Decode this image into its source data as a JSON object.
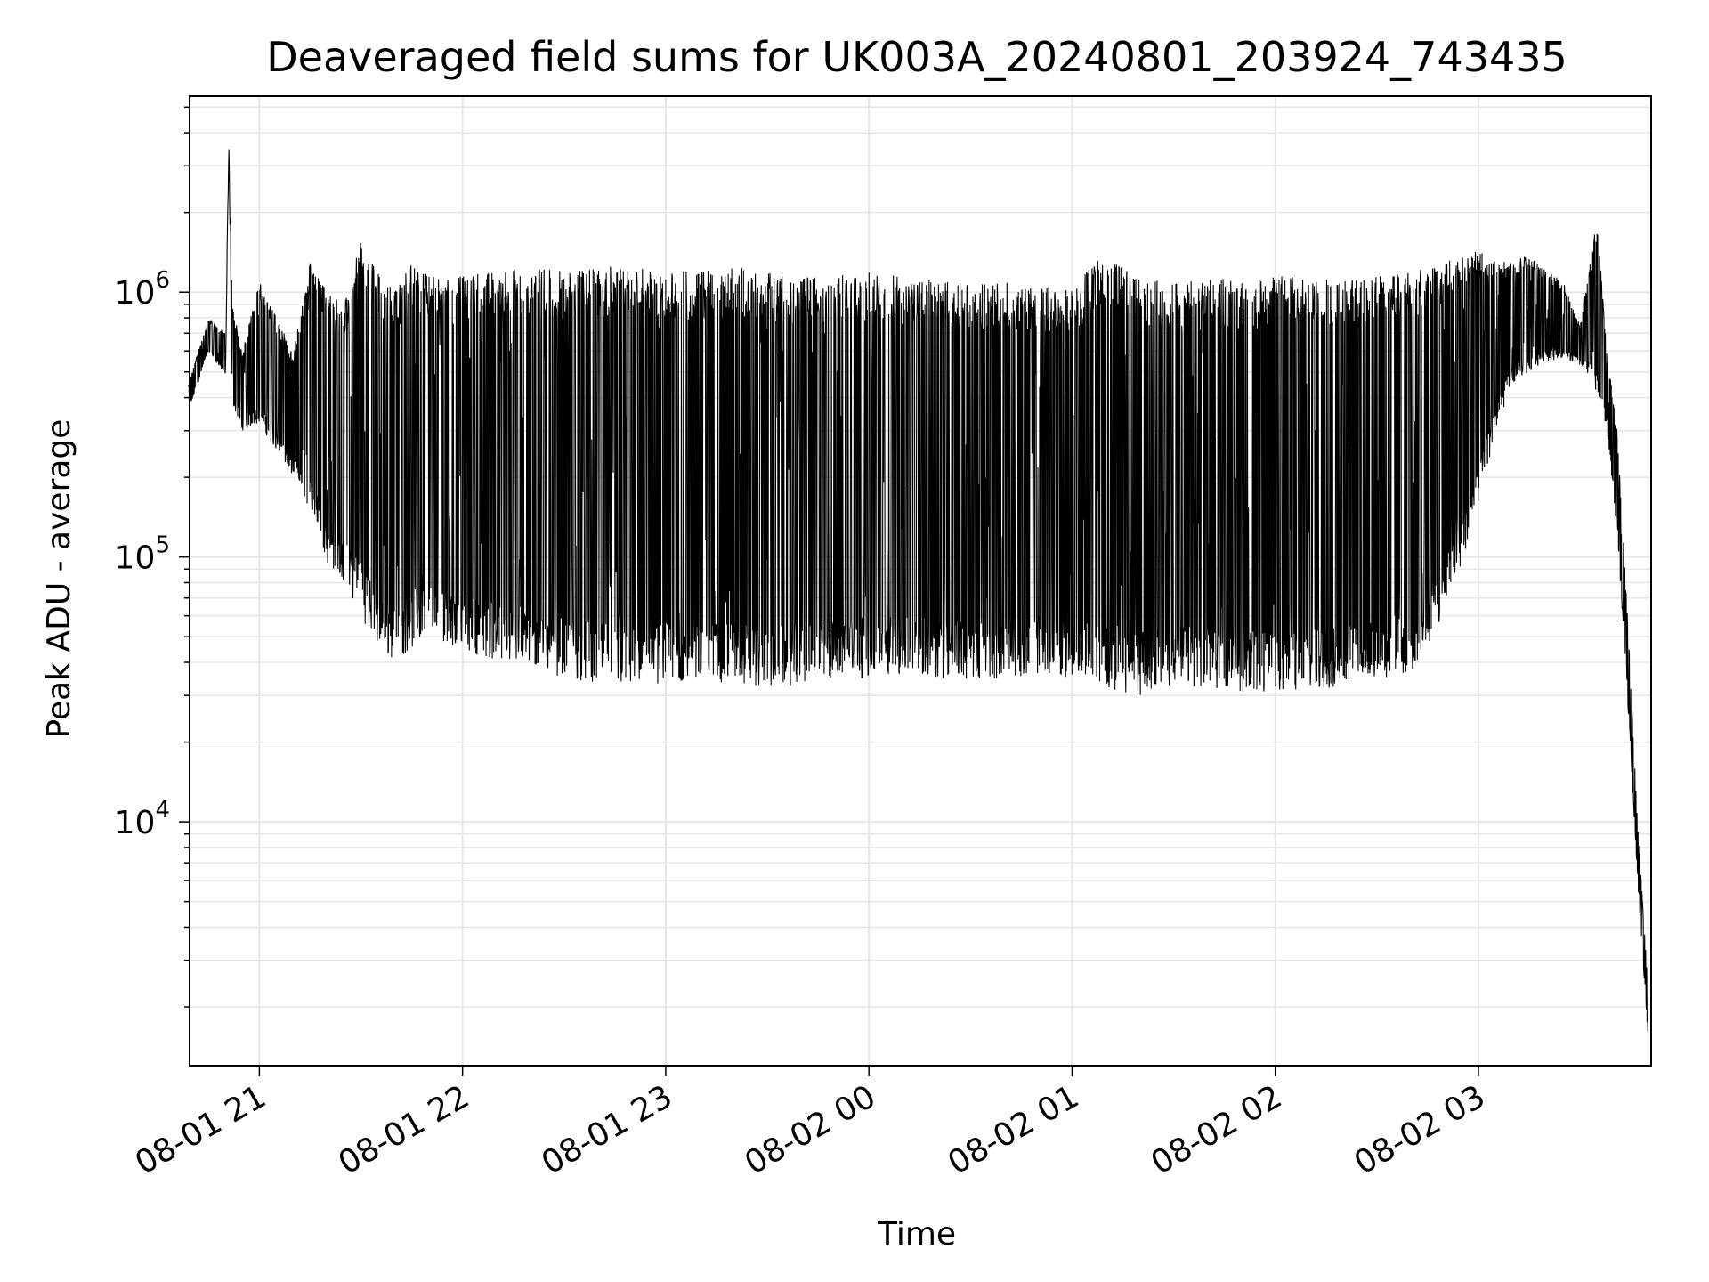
{
  "chart_data": {
    "type": "line",
    "title": "Deaveraged field sums for UK003A_20240801_203924_743435",
    "xlabel": "Time",
    "ylabel": "Peak ADU - average",
    "yscale": "log",
    "ylim": [
      1200,
      5500000
    ],
    "xlim": [
      "2024-08-01 20:39:24",
      "2024-08-02 03:51:00"
    ],
    "grid": true,
    "line_color": "#000000",
    "x_ticks": [
      {
        "time": "2024-08-01 21:00",
        "label": "08-01 21"
      },
      {
        "time": "2024-08-01 22:00",
        "label": "08-01 22"
      },
      {
        "time": "2024-08-01 23:00",
        "label": "08-01 23"
      },
      {
        "time": "2024-08-02 00:00",
        "label": "08-02 00"
      },
      {
        "time": "2024-08-02 01:00",
        "label": "08-02 01"
      },
      {
        "time": "2024-08-02 02:00",
        "label": "08-02 02"
      },
      {
        "time": "2024-08-02 03:00",
        "label": "08-02 03"
      }
    ],
    "y_ticks": [
      {
        "value": 10000,
        "base": "10",
        "exp": "4"
      },
      {
        "value": 100000,
        "base": "10",
        "exp": "5"
      },
      {
        "value": 1000000,
        "base": "10",
        "exp": "6"
      }
    ],
    "series": [
      {
        "x": [
          "2024-08-01 20:39",
          "2024-08-01 20:45",
          "2024-08-01 20:50",
          "2024-08-01 20:51",
          "2024-08-01 20:52",
          "2024-08-01 20:55",
          "2024-08-01 21:00",
          "2024-08-01 21:05",
          "2024-08-01 21:10",
          "2024-08-01 21:15",
          "2024-08-01 21:20",
          "2024-08-01 21:25",
          "2024-08-01 21:30",
          "2024-08-01 21:35",
          "2024-08-01 21:40",
          "2024-08-01 21:45",
          "2024-08-01 21:50",
          "2024-08-01 22:00",
          "2024-08-01 22:10",
          "2024-08-01 22:20",
          "2024-08-01 22:30",
          "2024-08-01 22:40",
          "2024-08-01 22:50",
          "2024-08-01 23:00",
          "2024-08-01 23:10",
          "2024-08-01 23:20",
          "2024-08-01 23:30",
          "2024-08-01 23:40",
          "2024-08-01 23:50",
          "2024-08-02 00:00",
          "2024-08-02 00:10",
          "2024-08-02 00:20",
          "2024-08-02 00:30",
          "2024-08-02 00:40",
          "2024-08-02 00:50",
          "2024-08-02 01:00",
          "2024-08-02 01:10",
          "2024-08-02 01:20",
          "2024-08-02 01:30",
          "2024-08-02 01:40",
          "2024-08-02 01:50",
          "2024-08-02 02:00",
          "2024-08-02 02:10",
          "2024-08-02 02:20",
          "2024-08-02 02:30",
          "2024-08-02 02:40",
          "2024-08-02 02:50",
          "2024-08-02 03:00",
          "2024-08-02 03:05",
          "2024-08-02 03:10",
          "2024-08-02 03:15",
          "2024-08-02 03:20",
          "2024-08-02 03:25",
          "2024-08-02 03:30",
          "2024-08-02 03:35",
          "2024-08-02 03:38",
          "2024-08-02 03:41",
          "2024-08-02 03:44",
          "2024-08-02 03:47",
          "2024-08-02 03:50"
        ],
        "y": [
          350000,
          600000,
          480000,
          3500000,
          380000,
          300000,
          320000,
          250000,
          200000,
          150000,
          95000,
          80000,
          60000,
          45000,
          40000,
          45000,
          50000,
          45000,
          40000,
          38000,
          35000,
          33000,
          32000,
          33000,
          34000,
          33000,
          32000,
          33000,
          34000,
          35000,
          36000,
          35000,
          34000,
          35000,
          36000,
          35000,
          32000,
          30000,
          33000,
          32000,
          31000,
          30000,
          31000,
          32000,
          34000,
          36000,
          60000,
          150000,
          300000,
          450000,
          500000,
          550000,
          560000,
          530000,
          420000,
          300000,
          120000,
          30000,
          6000,
          1600
        ],
        "upper_envelope": [
          450000,
          800000,
          700000,
          3500000,
          900000,
          600000,
          1100000,
          800000,
          600000,
          1300000,
          1000000,
          900000,
          1600000,
          1200000,
          1000000,
          1300000,
          1150000,
          1150000,
          1200000,
          1250000,
          1200000,
          1250000,
          1250000,
          1200000,
          1200000,
          1250000,
          1200000,
          1150000,
          1150000,
          1200000,
          1150000,
          1100000,
          1100000,
          1100000,
          1050000,
          1050000,
          1450000,
          1150000,
          1100000,
          1150000,
          1100000,
          1150000,
          1150000,
          1100000,
          1150000,
          1200000,
          1300000,
          1450000,
          1350000,
          1300000,
          1400000,
          1200000,
          1100000,
          750000,
          1900000,
          600000,
          300000,
          60000,
          10000,
          2500
        ]
      }
    ]
  }
}
